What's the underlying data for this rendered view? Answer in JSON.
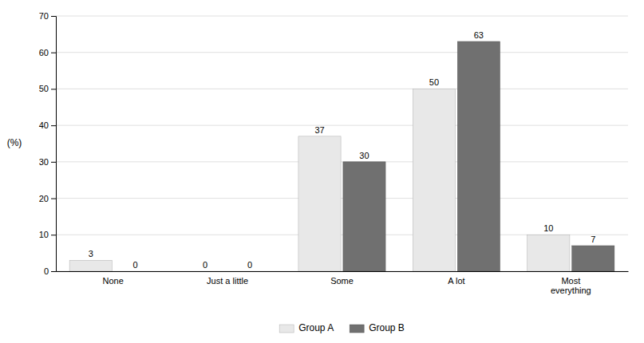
{
  "chart_data": {
    "type": "bar",
    "categories": [
      "None",
      "Just a little",
      "Some",
      "A lot",
      "Most\neverything"
    ],
    "series": [
      {
        "name": "Group A",
        "color": "#e8e8e8",
        "values": [
          3,
          0,
          37,
          50,
          10
        ]
      },
      {
        "name": "Group B",
        "color": "#707070",
        "values": [
          0,
          0,
          30,
          63,
          7
        ]
      }
    ],
    "ylabel": "(%)",
    "ylim": [
      0,
      70
    ],
    "yticks": [
      0,
      10,
      20,
      30,
      40,
      50,
      60,
      70
    ],
    "grid": true,
    "legend": "bottom",
    "data_labels": true
  }
}
